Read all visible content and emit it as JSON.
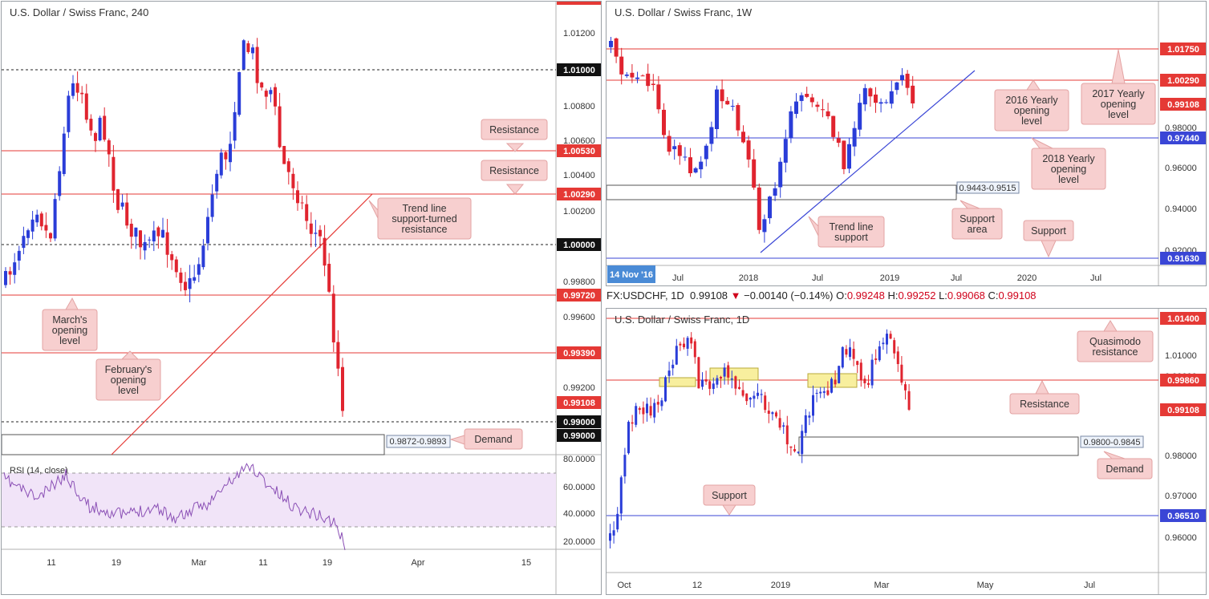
{
  "colors": {
    "up": "#2a3dd8",
    "down": "#e0242f",
    "res": "#e53935",
    "sup": "#3a46d6",
    "callout": "#f7cfcf",
    "callout_border": "#e3a3a3",
    "rsi": "#8a4fb5",
    "rsi_bg": "#f1e4f8"
  },
  "panel_h4": {
    "title": "U.S. Dollar / Swiss Franc, 240",
    "y_ticks": [
      "1.01200",
      "1.00800",
      "1.00600",
      "1.00400",
      "1.00200",
      "0.99800",
      "0.99600",
      "0.99200"
    ],
    "x_ticks": [
      "11",
      "19",
      "Mar",
      "11",
      "19",
      "Apr",
      "15"
    ],
    "levels": [
      {
        "label": "1.01000",
        "style": "dotted",
        "tag": "black"
      },
      {
        "label": "1.00530",
        "style": "red",
        "tag": "red"
      },
      {
        "label": "1.00290",
        "style": "red",
        "tag": "red"
      },
      {
        "label": "1.00000",
        "style": "dotted",
        "tag": "black"
      },
      {
        "label": "0.99720",
        "style": "red",
        "tag": "red"
      },
      {
        "label": "0.99390",
        "style": "red",
        "tag": "red"
      },
      {
        "label": "0.99108",
        "style": "none",
        "tag": "red"
      },
      {
        "label": "0.99000",
        "style": "dotted",
        "tag": "black"
      },
      {
        "label": "0.99000",
        "style": "none",
        "tag": "black"
      }
    ],
    "zone_label": "0.9872-0.9893",
    "callouts": [
      "Resistance",
      "Resistance",
      "Trend line support-turned resistance",
      "March's opening level",
      "February's opening level",
      "Demand"
    ],
    "rsi_label": "RSI (14, close)",
    "rsi_ticks": [
      "80.0000",
      "60.0000",
      "40.0000",
      "20.0000"
    ]
  },
  "panel_w": {
    "title": "U.S. Dollar / Swiss Franc, 1W",
    "y_ticks": [
      "0.98000",
      "0.96000",
      "0.94000",
      "0.92000"
    ],
    "x_ticks": [
      "Jul",
      "2018",
      "Jul",
      "2019",
      "Jul",
      "2020",
      "Jul"
    ],
    "date_badge": "14 Nov '16",
    "levels": [
      {
        "label": "1.01750",
        "tag": "red"
      },
      {
        "label": "1.00290",
        "tag": "red"
      },
      {
        "label": "0.99108",
        "tag": "red"
      },
      {
        "label": "0.97440",
        "tag": "blue"
      },
      {
        "label": "0.91630",
        "tag": "blue"
      }
    ],
    "zone_label": "0.9443-0.9515",
    "callouts": [
      "2016 Yearly opening level",
      "2017 Yearly opening level",
      "2018 Yearly opening level",
      "Trend line support",
      "Support area",
      "Support"
    ]
  },
  "header": {
    "symbol": "FX:USDCHF, 1D",
    "last": "0.99108",
    "change": "−0.00140 (−0.14%)",
    "o_label": "O:",
    "o": "0.99248",
    "h_label": "H:",
    "h": "0.99252",
    "l_label": "L:",
    "l": "0.99068",
    "c_label": "C:",
    "c": "0.99108"
  },
  "panel_d": {
    "title": "U.S. Dollar / Swiss Franc, 1D",
    "y_ticks": [
      "1.01000",
      "0.99000",
      "0.98000",
      "0.97000",
      "0.96000"
    ],
    "x_ticks": [
      "Oct",
      "12",
      "2019",
      "Mar",
      "May",
      "Jul"
    ],
    "levels": [
      {
        "label": "1.01400",
        "tag": "red"
      },
      {
        "label": "0.99860",
        "tag": "red"
      },
      {
        "label": "0.99108",
        "tag": "red"
      },
      {
        "label": "0.96510",
        "tag": "blue"
      }
    ],
    "zone_label": "0.9800-0.9845",
    "callouts": [
      "Quasimodo resistance",
      "Resistance",
      "Demand",
      "Support"
    ]
  },
  "chart_data": [
    {
      "type": "candlestick",
      "title": "U.S. Dollar / Swiss Franc, 240",
      "ylim": [
        0.9872,
        1.0125
      ],
      "levels": [
        1.01,
        1.0053,
        1.0029,
        1.0,
        0.9972,
        0.9939,
        0.99
      ],
      "demand_zone": [
        0.9872,
        0.9893
      ],
      "last": 0.99108
    },
    {
      "type": "candlestick",
      "title": "U.S. Dollar / Swiss Franc, 1W",
      "ylim": [
        0.912,
        1.02
      ],
      "levels": [
        1.0175,
        1.0029,
        0.9744,
        0.9163
      ],
      "support_zone": [
        0.9443,
        0.9515
      ],
      "last": 0.99108
    },
    {
      "type": "candlestick",
      "title": "U.S. Dollar / Swiss Franc, 1D",
      "ylim": [
        0.955,
        1.016
      ],
      "levels": [
        1.014,
        0.9986,
        0.9651
      ],
      "demand_zone": [
        0.98,
        0.9845
      ],
      "last": 0.99108
    }
  ]
}
